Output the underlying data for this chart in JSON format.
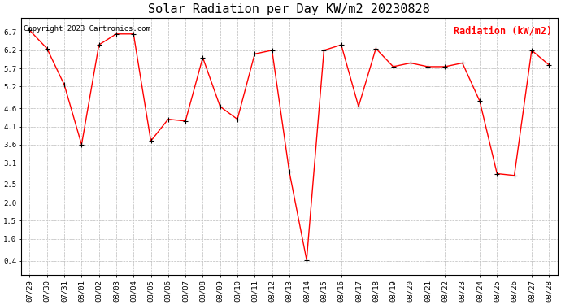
{
  "title": "Solar Radiation per Day KW/m2 20230828",
  "copyright_text": "Copyright 2023 Cartronics.com",
  "legend_label": "Radiation (kW/m2)",
  "dates": [
    "07/29",
    "07/30",
    "07/31",
    "08/01",
    "08/02",
    "08/03",
    "08/04",
    "08/05",
    "08/06",
    "08/07",
    "08/08",
    "08/09",
    "08/10",
    "08/11",
    "08/12",
    "08/13",
    "08/14",
    "08/15",
    "08/16",
    "08/17",
    "08/18",
    "08/19",
    "08/20",
    "08/21",
    "08/22",
    "08/23",
    "08/24",
    "08/25",
    "08/26",
    "08/27",
    "08/28"
  ],
  "values": [
    6.75,
    6.25,
    5.25,
    3.6,
    6.35,
    6.65,
    6.65,
    3.7,
    4.3,
    4.25,
    6.0,
    4.65,
    4.3,
    6.1,
    6.2,
    2.85,
    0.42,
    6.2,
    6.35,
    4.65,
    6.25,
    5.75,
    5.85,
    5.75,
    5.75,
    5.85,
    4.8,
    2.8,
    2.75,
    6.2,
    5.8
  ],
  "ylim": [
    0.0,
    7.1
  ],
  "yticks": [
    0.4,
    1.0,
    1.5,
    2.0,
    2.5,
    3.1,
    3.6,
    4.1,
    4.6,
    5.2,
    5.7,
    6.2,
    6.7
  ],
  "line_color": "red",
  "marker_color": "black",
  "title_fontsize": 11,
  "copyright_fontsize": 6.5,
  "legend_fontsize": 8.5,
  "tick_fontsize": 6.5,
  "background_color": "white",
  "grid_color": "#bbbbbb",
  "legend_color": "red"
}
